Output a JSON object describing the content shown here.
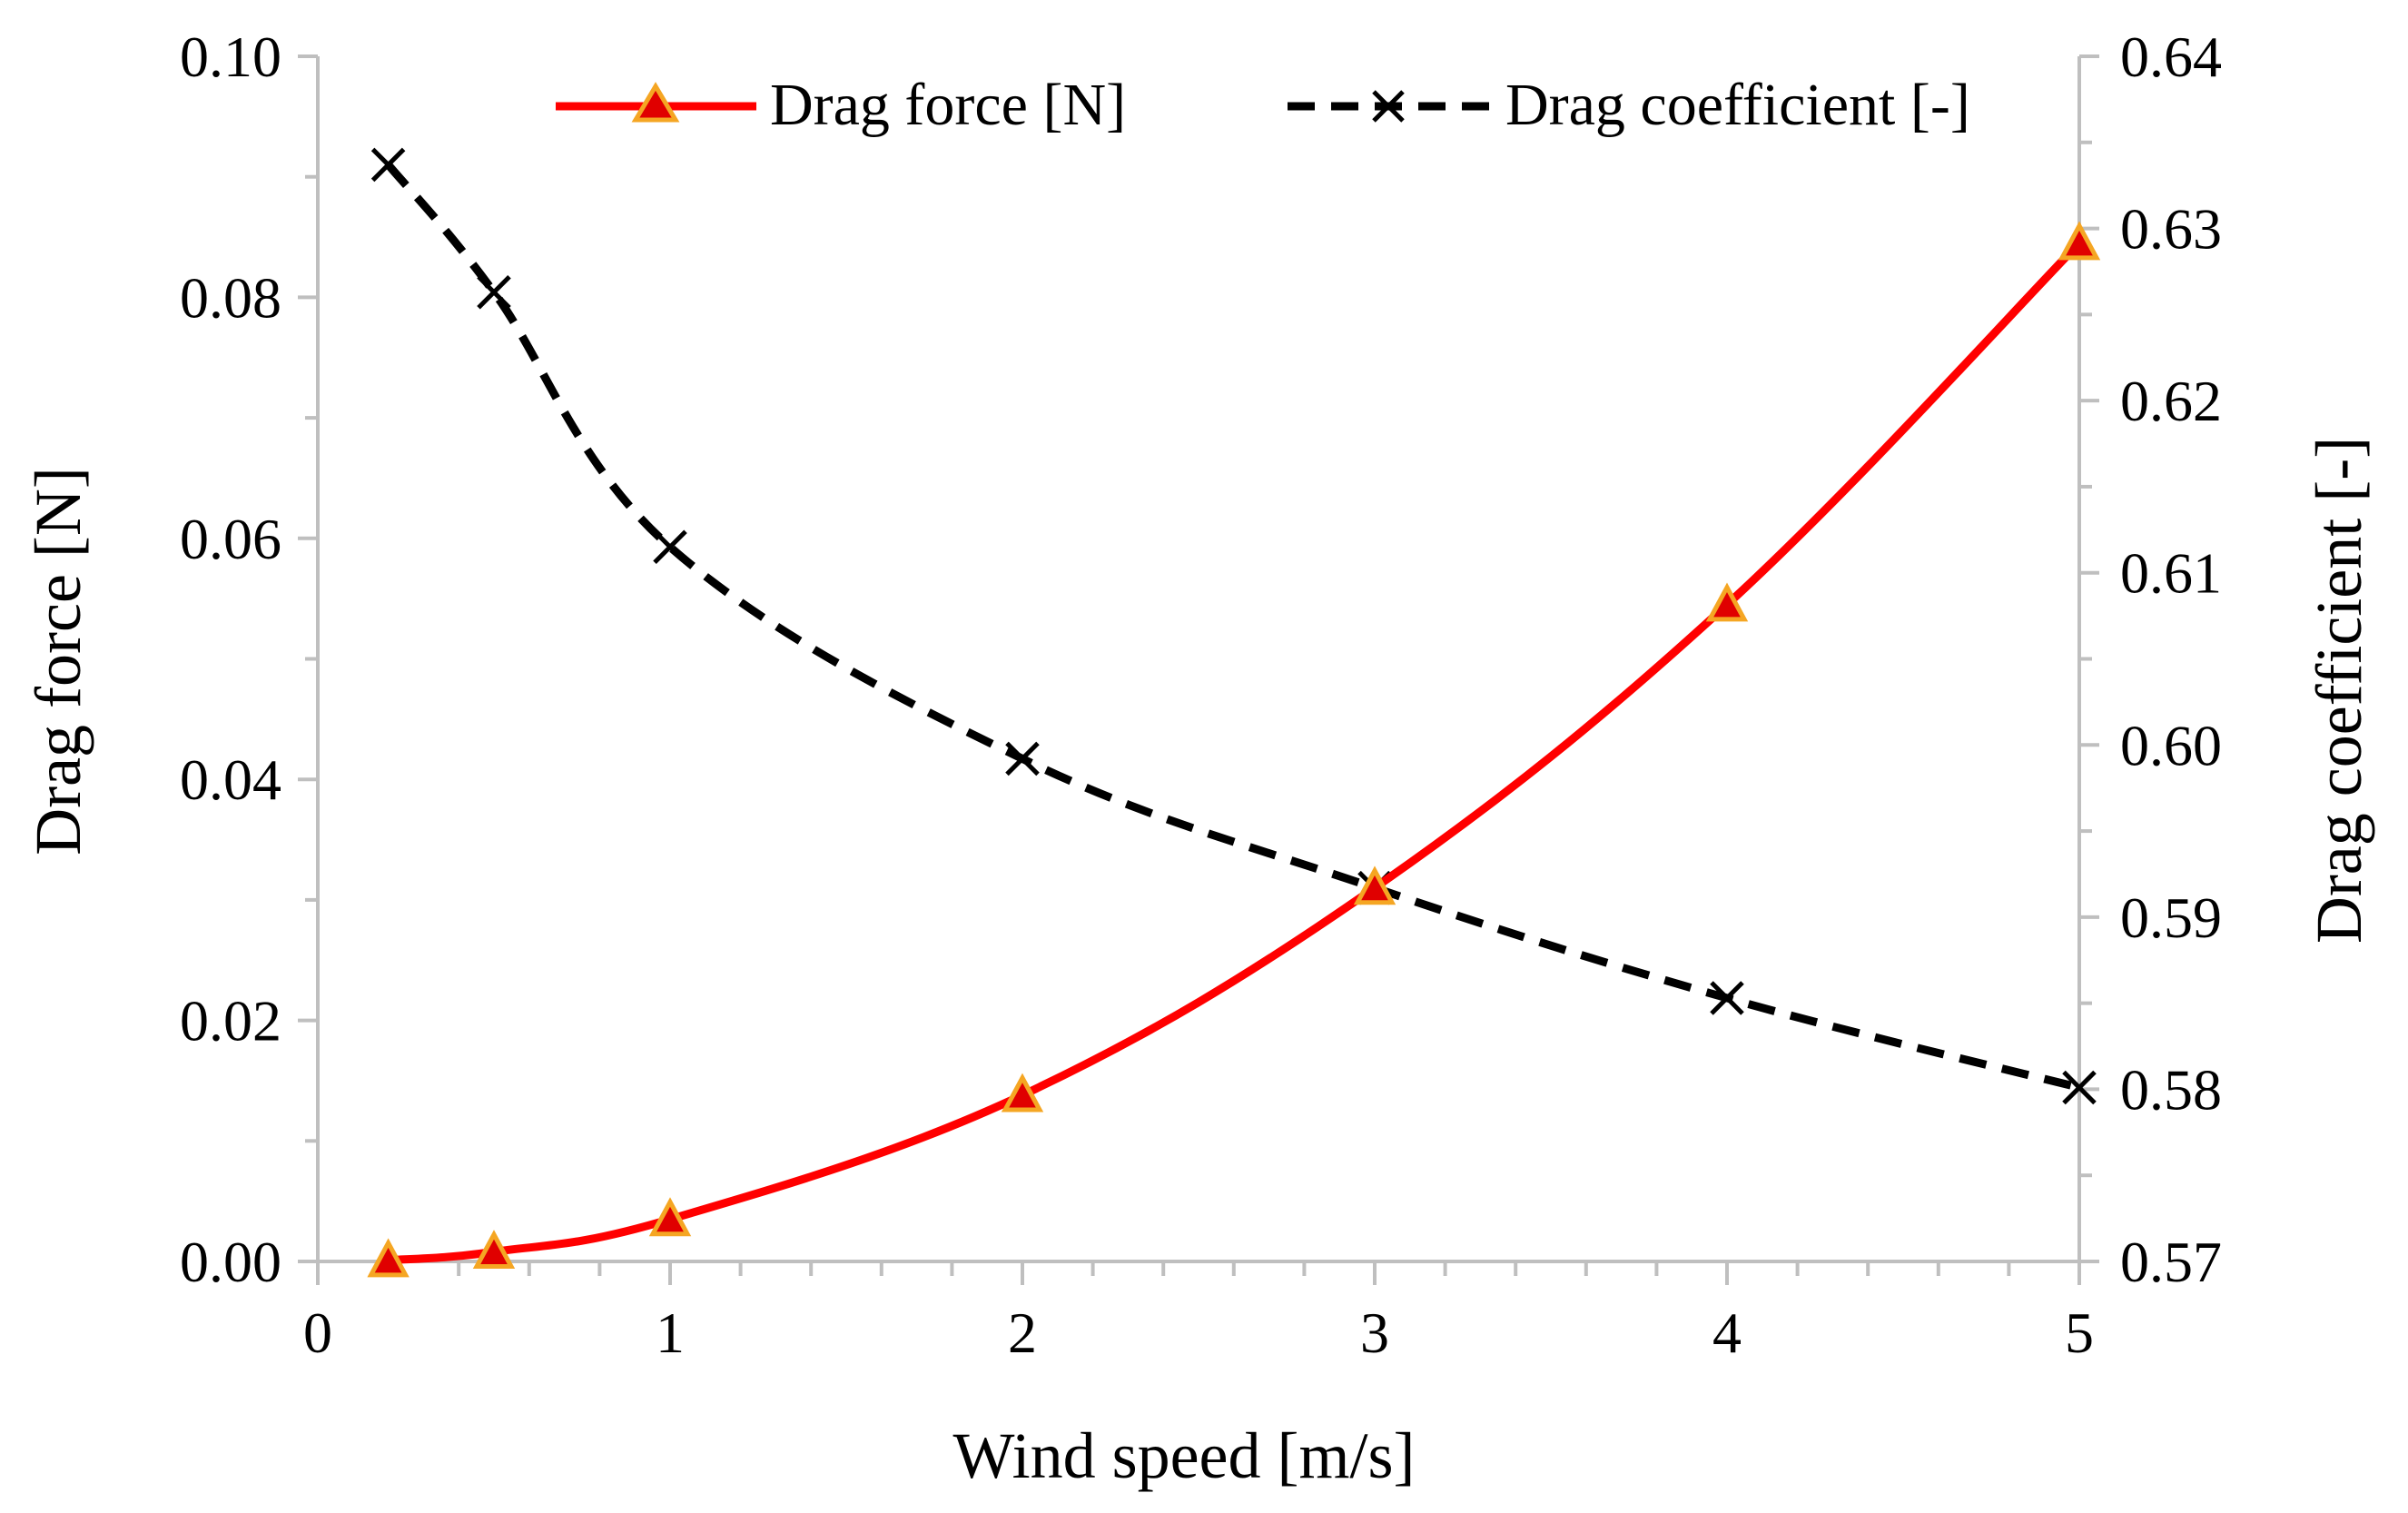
{
  "colors": {
    "background": "#ffffff",
    "axis": "#bfbfbf",
    "drag_force_line": "#ff0000",
    "drag_force_marker_fill": "#e00000",
    "drag_force_marker_edge": "#f5a623",
    "drag_coefficient_line": "#000000"
  },
  "legend": {
    "placement": "top-center",
    "items": [
      {
        "label": "Drag force [N]",
        "icon": "triangle-marker-icon"
      },
      {
        "label": "Drag coefficient [-]",
        "icon": "x-marker-icon"
      }
    ]
  },
  "chart_data": {
    "type": "line",
    "title": "",
    "xlabel": "Wind speed [m/s]",
    "ylabel": "Drag force [N]",
    "y2label": "Drag coefficient [-]",
    "xlim": [
      0,
      5
    ],
    "ylim": [
      0,
      0.1
    ],
    "y2lim": [
      0.57,
      0.64
    ],
    "x_ticks": [
      "0",
      "1",
      "2",
      "3",
      "4",
      "5"
    ],
    "y_ticks": [
      "0.00",
      "0.02",
      "0.04",
      "0.06",
      "0.08",
      "0.10"
    ],
    "y2_ticks": [
      "0.57",
      "0.58",
      "0.59",
      "0.60",
      "0.61",
      "0.62",
      "0.63",
      "0.64"
    ],
    "grid": false,
    "series": [
      {
        "name": "Drag force [N]",
        "axis": "left",
        "style": "solid",
        "marker": "triangle",
        "x": [
          0.2,
          0.5,
          1,
          2,
          3,
          4,
          5
        ],
        "values": [
          0.0001,
          0.0008,
          0.0035,
          0.0138,
          0.031,
          0.0545,
          0.0845
        ]
      },
      {
        "name": "Drag coefficient [-]",
        "axis": "right",
        "style": "dashed",
        "marker": "x",
        "x": [
          0.2,
          0.5,
          1,
          2,
          3,
          4,
          5
        ],
        "values": [
          0.6337,
          0.6263,
          0.6115,
          0.5992,
          0.5917,
          0.5853,
          0.5801
        ]
      }
    ]
  }
}
